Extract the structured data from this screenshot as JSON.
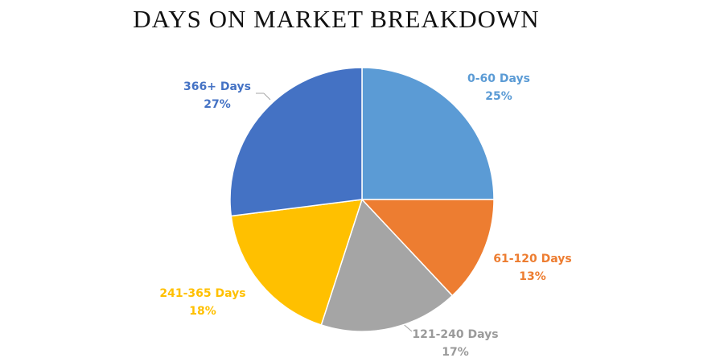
{
  "chart_data": {
    "type": "pie",
    "title": "DAYS ON MARKET BREAKDOWN",
    "categories": [
      "0-60 Days",
      "61-120 Days",
      "121-240 Days",
      "241-365 Days",
      "366+ Days"
    ],
    "values": [
      25,
      13,
      17,
      18,
      27
    ],
    "value_labels": [
      "25%",
      "13%",
      "17%",
      "18%",
      "27%"
    ],
    "colors": [
      "#5b9bd5",
      "#ed7d31",
      "#a5a5a5",
      "#ffc000",
      "#4472c4"
    ]
  }
}
